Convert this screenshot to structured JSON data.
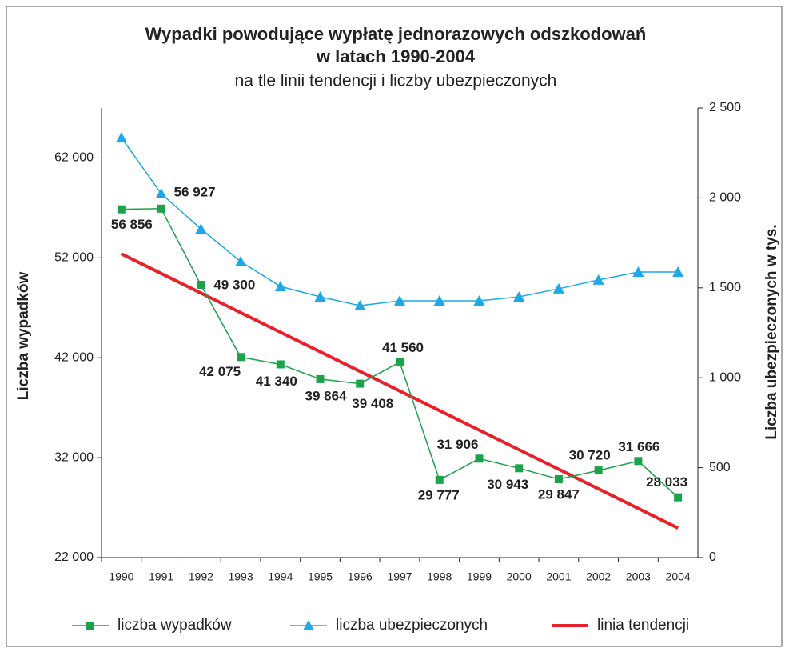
{
  "chart_data": {
    "type": "line",
    "title": "Wypadki powodujące wypłatę jednorazowych odszkodowań",
    "title_line2": "w latach 1990-2004",
    "subtitle": "na tle linii tendencji i liczby ubezpieczonych",
    "y_label": "Liczba wypadków",
    "y2_label": "Liczba ubezpieczonych w tys.",
    "categories": [
      "1990",
      "1991",
      "1992",
      "1993",
      "1994",
      "1995",
      "1996",
      "1997",
      "1998",
      "1999",
      "2000",
      "2001",
      "2002",
      "2003",
      "2004"
    ],
    "ylim": [
      22000,
      67000
    ],
    "yticks": [
      {
        "value": 22000,
        "label": "22 000"
      },
      {
        "value": 32000,
        "label": "32 000"
      },
      {
        "value": 42000,
        "label": "42 000"
      },
      {
        "value": 52000,
        "label": "52 000"
      },
      {
        "value": 62000,
        "label": "62 000"
      }
    ],
    "y2lim": [
      0,
      2500
    ],
    "y2ticks": [
      0,
      500,
      {
        "value": 1000,
        "label": "1 000"
      },
      {
        "value": 1500,
        "label": "1 500"
      },
      {
        "value": 2000,
        "label": "2 000"
      },
      {
        "value": 2500,
        "label": "2 500"
      }
    ],
    "series": [
      {
        "name": "liczba wypadków",
        "color": "#1aa34a",
        "marker": "square",
        "values": [
          56856,
          56927,
          49300,
          42075,
          41340,
          39864,
          39408,
          41560,
          29777,
          31906,
          30943,
          29847,
          30720,
          31666,
          28033
        ],
        "value_labels": [
          "56 856",
          "56 927",
          "49 300",
          "42 075",
          "41 340",
          "39 864",
          "39 408",
          "41 560",
          "29 777",
          "31 906",
          "30 943",
          "29 847",
          "30 720",
          "31 666",
          "28 033"
        ]
      },
      {
        "name": "liczba ubezpieczonych",
        "color": "#1ea8e8",
        "marker": "triangle",
        "axis": "y2",
        "values": [
          2335,
          2024,
          1828,
          1646,
          1508,
          1450,
          1401,
          1428,
          1428,
          1428,
          1450,
          1495,
          1544,
          1588,
          1588
        ]
      },
      {
        "name": "linia tendencji",
        "color": "#e8222a",
        "values": [
          52400,
          50440,
          48480,
          46520,
          44560,
          42600,
          40640,
          38680,
          36720,
          34760,
          32800,
          30840,
          28880,
          26920,
          24960
        ]
      }
    ]
  }
}
